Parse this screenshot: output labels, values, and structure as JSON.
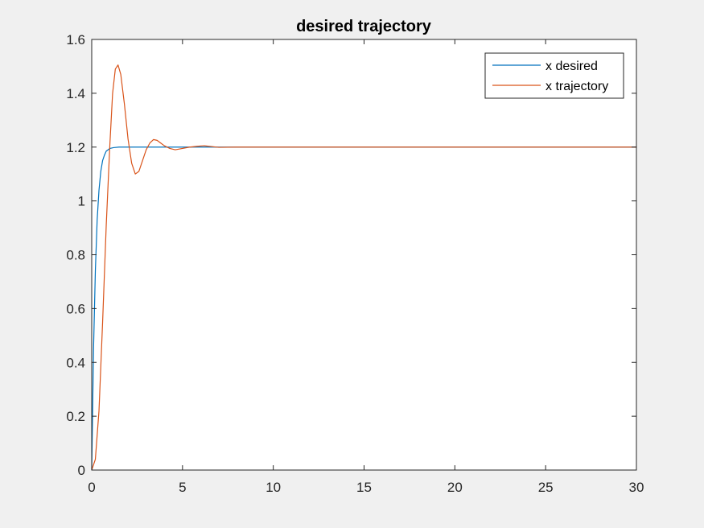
{
  "chart_data": {
    "type": "line",
    "title": "desired trajectory",
    "xlabel": "",
    "ylabel": "",
    "xlim": [
      0,
      30
    ],
    "ylim": [
      0,
      1.6
    ],
    "xticks": [
      "0",
      "5",
      "10",
      "15",
      "20",
      "25",
      "30"
    ],
    "yticks": [
      "0",
      "0.2",
      "0.4",
      "0.6",
      "0.8",
      "1",
      "1.2",
      "1.4",
      "1.6"
    ],
    "grid": false,
    "legend_position": "top-right",
    "series": [
      {
        "name": "x desired",
        "color": "#0072bd",
        "x": [
          0,
          0.1,
          0.2,
          0.3,
          0.4,
          0.5,
          0.6,
          0.7,
          0.8,
          0.9,
          1.0,
          1.2,
          1.5,
          2.0,
          3.0,
          5.0,
          10,
          15,
          20,
          25,
          30
        ],
        "y": [
          0,
          0.45,
          0.74,
          0.93,
          1.04,
          1.11,
          1.15,
          1.17,
          1.185,
          1.19,
          1.195,
          1.198,
          1.2,
          1.2,
          1.2,
          1.2,
          1.2,
          1.2,
          1.2,
          1.2,
          1.2
        ]
      },
      {
        "name": "x trajectory",
        "color": "#d95319",
        "x": [
          0,
          0.2,
          0.4,
          0.6,
          0.8,
          1.0,
          1.15,
          1.3,
          1.45,
          1.6,
          1.8,
          2.0,
          2.2,
          2.4,
          2.6,
          2.8,
          3.0,
          3.2,
          3.4,
          3.6,
          3.8,
          4.0,
          4.3,
          4.6,
          5.0,
          5.4,
          5.8,
          6.2,
          6.6,
          7.0,
          8.0,
          10,
          15,
          20,
          25,
          30
        ],
        "y": [
          0,
          0.04,
          0.22,
          0.55,
          0.91,
          1.21,
          1.4,
          1.49,
          1.505,
          1.47,
          1.36,
          1.23,
          1.14,
          1.1,
          1.11,
          1.15,
          1.19,
          1.215,
          1.228,
          1.225,
          1.215,
          1.205,
          1.195,
          1.19,
          1.195,
          1.2,
          1.203,
          1.205,
          1.202,
          1.199,
          1.2,
          1.2,
          1.2,
          1.2,
          1.2,
          1.2
        ]
      }
    ]
  }
}
